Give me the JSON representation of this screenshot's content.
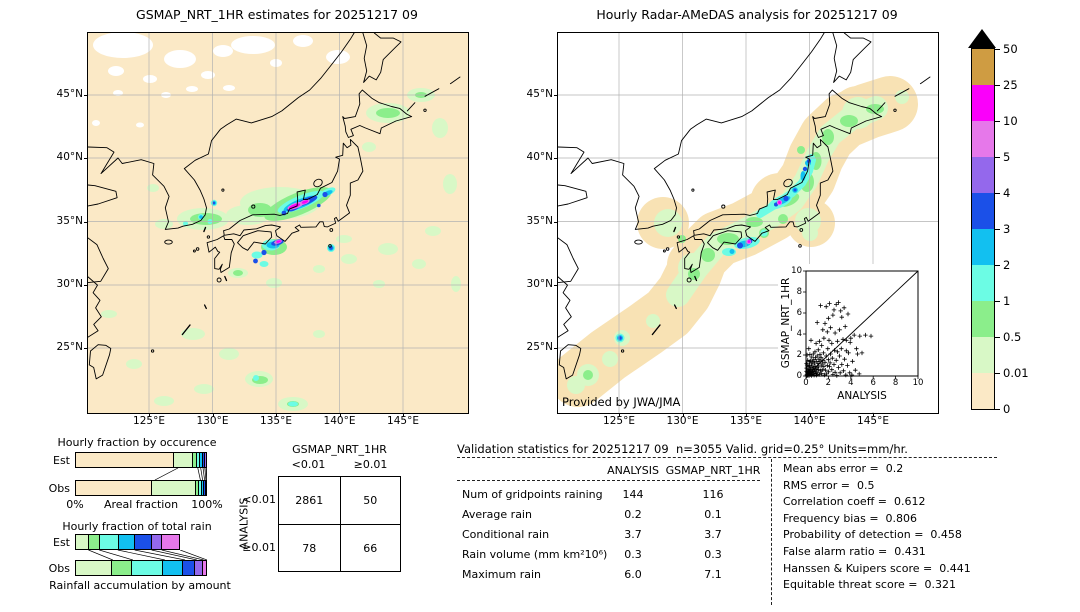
{
  "colors": {
    "map_bg": "#fbe9c6",
    "radar_tan": "#f8e2b4",
    "grid": "#b3b3b3",
    "scale": [
      "#fbe9c6",
      "#d8f8c6",
      "#8bee8b",
      "#6cfce4",
      "#12c0f0",
      "#1b50e8",
      "#9468ec",
      "#e678ea",
      "#fa00fa",
      "#cf9c42"
    ]
  },
  "left_map": {
    "title": "GSMAP_NRT_1HR estimates for 20251217 09",
    "x_ticks": [
      "125°E",
      "130°E",
      "135°E",
      "140°E",
      "145°E"
    ],
    "y_ticks": [
      "45°N",
      "40°N",
      "35°N",
      "30°N",
      "25°N"
    ]
  },
  "right_map": {
    "title": "Hourly Radar-AMeDAS analysis for 20251217 09",
    "x_ticks": [
      "125°E",
      "130°E",
      "135°E",
      "140°E",
      "145°E"
    ],
    "y_ticks": [
      "45°N",
      "40°N",
      "35°N",
      "30°N",
      "25°N"
    ],
    "credit": "Provided by JWA/JMA"
  },
  "colorbar": {
    "tick_labels": [
      "50",
      "25",
      "10",
      "5",
      "4",
      "3",
      "2",
      "1",
      "0.5",
      "0.01",
      "0"
    ],
    "segment_color_indices_top_to_bottom": [
      9,
      8,
      7,
      6,
      5,
      4,
      3,
      2,
      1,
      0
    ]
  },
  "inset": {
    "xlabel": "ANALYSIS",
    "ylabel": "GSMAP_NRT_1HR",
    "x_tick_labels": [
      "0",
      "2",
      "4",
      "6",
      "8",
      "10"
    ],
    "y_tick_labels": [
      "0",
      "2",
      "4",
      "6",
      "8",
      "10"
    ]
  },
  "occurrence_chart": {
    "title": "Hourly fraction by occurence",
    "row_labels": [
      "Est",
      "Obs"
    ],
    "axis_left": "0%",
    "axis_center": "Areal fraction",
    "axis_right": "100%"
  },
  "totalrain_chart": {
    "title": "Hourly fraction of total rain",
    "row_labels": [
      "Est",
      "Obs"
    ],
    "caption": "Rainfall accumulation by amount"
  },
  "contingency": {
    "col_header": "GSMAP_NRT_1HR",
    "row_header": "ANALYSIS",
    "col_labels": [
      "<0.01",
      "≥0.01"
    ],
    "row_labels": [
      "<0.01",
      "≥0.01"
    ],
    "values": [
      [
        "2861",
        "50"
      ],
      [
        "78",
        "66"
      ]
    ]
  },
  "stats": {
    "title": "Validation statistics for 20251217 09  n=3055 Valid. grid=0.25° Units=mm/hr.",
    "col_headers": [
      "ANALYSIS",
      "GSMAP_NRT_1HR"
    ],
    "rows": [
      {
        "label": "Num of gridpoints raining",
        "analysis": "144",
        "gsmap": "116"
      },
      {
        "label": "Average rain",
        "analysis": "0.2",
        "gsmap": "0.1"
      },
      {
        "label": "Conditional rain",
        "analysis": "3.7",
        "gsmap": "3.7"
      },
      {
        "label": "Rain volume (mm km²10⁶)",
        "analysis": "0.3",
        "gsmap": "0.3"
      },
      {
        "label": "Maximum rain",
        "analysis": "6.0",
        "gsmap": "7.1"
      }
    ],
    "scores": [
      {
        "label": "Mean abs error",
        "value": "0.2"
      },
      {
        "label": "RMS error",
        "value": "0.5"
      },
      {
        "label": "Correlation coeff",
        "value": "0.612"
      },
      {
        "label": "Frequency bias",
        "value": "0.806"
      },
      {
        "label": "Probability of detection",
        "value": "0.458"
      },
      {
        "label": "False alarm ratio",
        "value": "0.431"
      },
      {
        "label": "Hanssen & Kuipers score",
        "value": "0.441"
      },
      {
        "label": "Equitable threat score",
        "value": "0.321"
      }
    ]
  },
  "chart_data": [
    {
      "type": "heatmap",
      "role": "precipitation-map",
      "title": "GSMAP_NRT_1HR estimates for 20251217 09",
      "x_ticks": [
        "125°E",
        "130°E",
        "135°E",
        "140°E",
        "145°E"
      ],
      "y_ticks": [
        "45°N",
        "40°N",
        "35°N",
        "30°N",
        "25°N"
      ],
      "color_levels_mm_hr": [
        0,
        0.01,
        0.5,
        1,
        2,
        3,
        4,
        5,
        10,
        25,
        50
      ],
      "units": "mm/hr"
    },
    {
      "type": "heatmap",
      "role": "precipitation-map",
      "title": "Hourly Radar-AMeDAS analysis for 20251217 09",
      "x_ticks": [
        "125°E",
        "130°E",
        "135°E",
        "140°E",
        "145°E"
      ],
      "y_ticks": [
        "45°N",
        "40°N",
        "35°N",
        "30°N",
        "25°N"
      ],
      "color_levels_mm_hr": [
        0,
        0.01,
        0.5,
        1,
        2,
        3,
        4,
        5,
        10,
        25,
        50
      ],
      "units": "mm/hr",
      "credit": "Provided by JWA/JMA"
    },
    {
      "type": "scatter",
      "xlabel": "ANALYSIS",
      "ylabel": "GSMAP_NRT_1HR",
      "xlim": [
        0,
        10
      ],
      "ylim": [
        0,
        10
      ],
      "diagonal": true,
      "points": [
        [
          0.05,
          0.02
        ],
        [
          0.08,
          0.15
        ],
        [
          0.1,
          0.05
        ],
        [
          0.12,
          0.3
        ],
        [
          0.15,
          0.12
        ],
        [
          0.15,
          0.6
        ],
        [
          0.18,
          0.08
        ],
        [
          0.2,
          0.35
        ],
        [
          0.2,
          0.9
        ],
        [
          0.22,
          0.18
        ],
        [
          0.25,
          0.5
        ],
        [
          0.28,
          0.05
        ],
        [
          0.3,
          0.22
        ],
        [
          0.3,
          0.65
        ],
        [
          0.3,
          1.35
        ],
        [
          0.32,
          1.0
        ],
        [
          0.35,
          0.45
        ],
        [
          0.38,
          0.12
        ],
        [
          0.4,
          0.6
        ],
        [
          0.4,
          1.45
        ],
        [
          0.42,
          0.28
        ],
        [
          0.45,
          0.85
        ],
        [
          0.48,
          0.05
        ],
        [
          0.5,
          0.35
        ],
        [
          0.5,
          1.15
        ],
        [
          0.52,
          1.8
        ],
        [
          0.55,
          0.6
        ],
        [
          0.58,
          0.15
        ],
        [
          0.6,
          0.45
        ],
        [
          0.6,
          1.35
        ],
        [
          0.62,
          0.95
        ],
        [
          0.65,
          2.1
        ],
        [
          0.68,
          0.25
        ],
        [
          0.7,
          0.75
        ],
        [
          0.7,
          1.55
        ],
        [
          0.72,
          0.08
        ],
        [
          0.75,
          1.25
        ],
        [
          0.78,
          0.4
        ],
        [
          0.8,
          0.5
        ],
        [
          0.8,
          2.3
        ],
        [
          0.82,
          0.9
        ],
        [
          0.85,
          1.75
        ],
        [
          0.88,
          0.2
        ],
        [
          0.9,
          0.65
        ],
        [
          0.9,
          3.1
        ],
        [
          0.92,
          1.4
        ],
        [
          0.95,
          0.08
        ],
        [
          1.0,
          0.85
        ],
        [
          1.0,
          1.9
        ],
        [
          1.0,
          5.1
        ],
        [
          1.05,
          0.3
        ],
        [
          1.05,
          1.2
        ],
        [
          1.1,
          0.6
        ],
        [
          1.1,
          2.5
        ],
        [
          1.15,
          0.95
        ],
        [
          1.15,
          1.6
        ],
        [
          1.2,
          0.15
        ],
        [
          1.2,
          3.3
        ],
        [
          1.25,
          1.35
        ],
        [
          1.25,
          2.05
        ],
        [
          1.3,
          0.5
        ],
        [
          1.3,
          6.7
        ],
        [
          1.35,
          0.95
        ],
        [
          1.35,
          1.75
        ],
        [
          1.4,
          0.25
        ],
        [
          1.4,
          2.9
        ],
        [
          1.45,
          1.15
        ],
        [
          1.5,
          0.6
        ],
        [
          1.5,
          1.5
        ],
        [
          1.5,
          4.4
        ],
        [
          1.55,
          2.2
        ],
        [
          1.6,
          0.9
        ],
        [
          1.6,
          3.6
        ],
        [
          1.65,
          0.1
        ],
        [
          1.7,
          1.3
        ],
        [
          1.7,
          5.0
        ],
        [
          1.75,
          0.55
        ],
        [
          1.8,
          1.9
        ],
        [
          1.8,
          6.6
        ],
        [
          1.85,
          0.2
        ],
        [
          1.9,
          1.0
        ],
        [
          1.9,
          4.2
        ],
        [
          1.95,
          2.6
        ],
        [
          2.0,
          0.4
        ],
        [
          2.0,
          1.55
        ],
        [
          2.0,
          5.5
        ],
        [
          2.05,
          3.4
        ],
        [
          2.1,
          0.9
        ],
        [
          2.1,
          6.9
        ],
        [
          2.15,
          1.25
        ],
        [
          2.2,
          2.1
        ],
        [
          2.2,
          4.6
        ],
        [
          2.3,
          0.6
        ],
        [
          2.3,
          3.1
        ],
        [
          2.35,
          1.7
        ],
        [
          2.4,
          0.15
        ],
        [
          2.4,
          5.8
        ],
        [
          2.5,
          1.1
        ],
        [
          2.5,
          6.3
        ],
        [
          2.55,
          2.45
        ],
        [
          2.6,
          0.35
        ],
        [
          2.6,
          4.1
        ],
        [
          2.7,
          1.5
        ],
        [
          2.7,
          6.8
        ],
        [
          2.75,
          0.05
        ],
        [
          2.8,
          2.3
        ],
        [
          2.8,
          3.3
        ],
        [
          2.9,
          0.8
        ],
        [
          2.9,
          7.0
        ],
        [
          3.0,
          1.9
        ],
        [
          3.0,
          4.4
        ],
        [
          3.05,
          0.3
        ],
        [
          3.1,
          6.2
        ],
        [
          3.15,
          2.6
        ],
        [
          3.2,
          1.1
        ],
        [
          3.2,
          5.6
        ],
        [
          3.3,
          3.5
        ],
        [
          3.35,
          0.5
        ],
        [
          3.4,
          6.5
        ],
        [
          3.45,
          1.6
        ],
        [
          3.5,
          4.7
        ],
        [
          3.55,
          0.1
        ],
        [
          3.6,
          2.4
        ],
        [
          3.6,
          3.4
        ],
        [
          3.7,
          1.0
        ],
        [
          3.75,
          5.9
        ],
        [
          3.8,
          2.2
        ],
        [
          3.9,
          0.3
        ],
        [
          3.95,
          3.2
        ],
        [
          4.0,
          3.6
        ],
        [
          4.1,
          0.1
        ],
        [
          4.15,
          1.4
        ],
        [
          4.3,
          3.9
        ],
        [
          4.4,
          0.55
        ],
        [
          4.5,
          2.6
        ],
        [
          4.6,
          2.1
        ],
        [
          4.75,
          0.2
        ],
        [
          4.8,
          3.8
        ],
        [
          5.0,
          2.2
        ],
        [
          5.3,
          3.9
        ],
        [
          5.8,
          3.8
        ],
        [
          0.05,
          0.45
        ],
        [
          0.1,
          1.05
        ],
        [
          0.05,
          0.75
        ],
        [
          0.15,
          1.5
        ],
        [
          0.1,
          2.0
        ],
        [
          0.05,
          1.2
        ],
        [
          0.25,
          2.6
        ],
        [
          0.45,
          3.4
        ],
        [
          0.35,
          2.05
        ]
      ]
    },
    {
      "type": "bar",
      "stacked": true,
      "title": "Hourly fraction by occurence",
      "categories": [
        "Est",
        "Obs"
      ],
      "xlabel": "Areal fraction",
      "xlim_pct": [
        0,
        100
      ],
      "rain_classes": [
        "0-0.01",
        "0.01-0.5",
        "0.5-1",
        "1-2",
        "2-3",
        "3-4",
        "4-5"
      ],
      "color_indices": [
        0,
        1,
        2,
        3,
        4,
        5,
        6
      ],
      "est": [
        78.0,
        15.0,
        2.2,
        1.8,
        1.3,
        1.0,
        0.7
      ],
      "obs": [
        60.5,
        34.5,
        1.7,
        1.5,
        1.0,
        0.5,
        0.3
      ]
    },
    {
      "type": "bar",
      "stacked": true,
      "title": "Hourly fraction of total rain",
      "categories": [
        "Est",
        "Obs"
      ],
      "xlabel": "Rainfall accumulation by amount",
      "rain_classes": [
        "0.01-0.5",
        "0.5-1",
        "1-2",
        "2-3",
        "3-4",
        "4-5",
        "5-10"
      ],
      "color_indices": [
        1,
        2,
        3,
        4,
        5,
        6,
        7
      ],
      "est": [
        10.2,
        8.2,
        14.0,
        12.8,
        12.8,
        7.7,
        14.0
      ],
      "obs": [
        28.6,
        15.3,
        24.2,
        15.3,
        8.9,
        5.1,
        2.6
      ]
    },
    {
      "type": "table",
      "role": "contingency",
      "col_header": "GSMAP_NRT_1HR",
      "row_header": "ANALYSIS",
      "cols": [
        "<0.01",
        "≥0.01"
      ],
      "rows": [
        "<0.01",
        "≥0.01"
      ],
      "values": [
        [
          2861,
          50
        ],
        [
          78,
          66
        ]
      ]
    },
    {
      "type": "table",
      "role": "validation-statistics",
      "n": 3055,
      "valid_grid_deg": 0.25,
      "units": "mm/hr",
      "columns": [
        "ANALYSIS",
        "GSMAP_NRT_1HR"
      ],
      "rows": [
        [
          "Num of gridpoints raining",
          144,
          116
        ],
        [
          "Average rain",
          0.2,
          0.1
        ],
        [
          "Conditional rain",
          3.7,
          3.7
        ],
        [
          "Rain volume (mm km²10⁶)",
          0.3,
          0.3
        ],
        [
          "Maximum rain",
          6.0,
          7.1
        ]
      ],
      "scores": {
        "mean_abs_error": 0.2,
        "rms_error": 0.5,
        "correlation_coeff": 0.612,
        "frequency_bias": 0.806,
        "probability_of_detection": 0.458,
        "false_alarm_ratio": 0.431,
        "hanssen_kuipers_score": 0.441,
        "equitable_threat_score": 0.321
      }
    }
  ]
}
